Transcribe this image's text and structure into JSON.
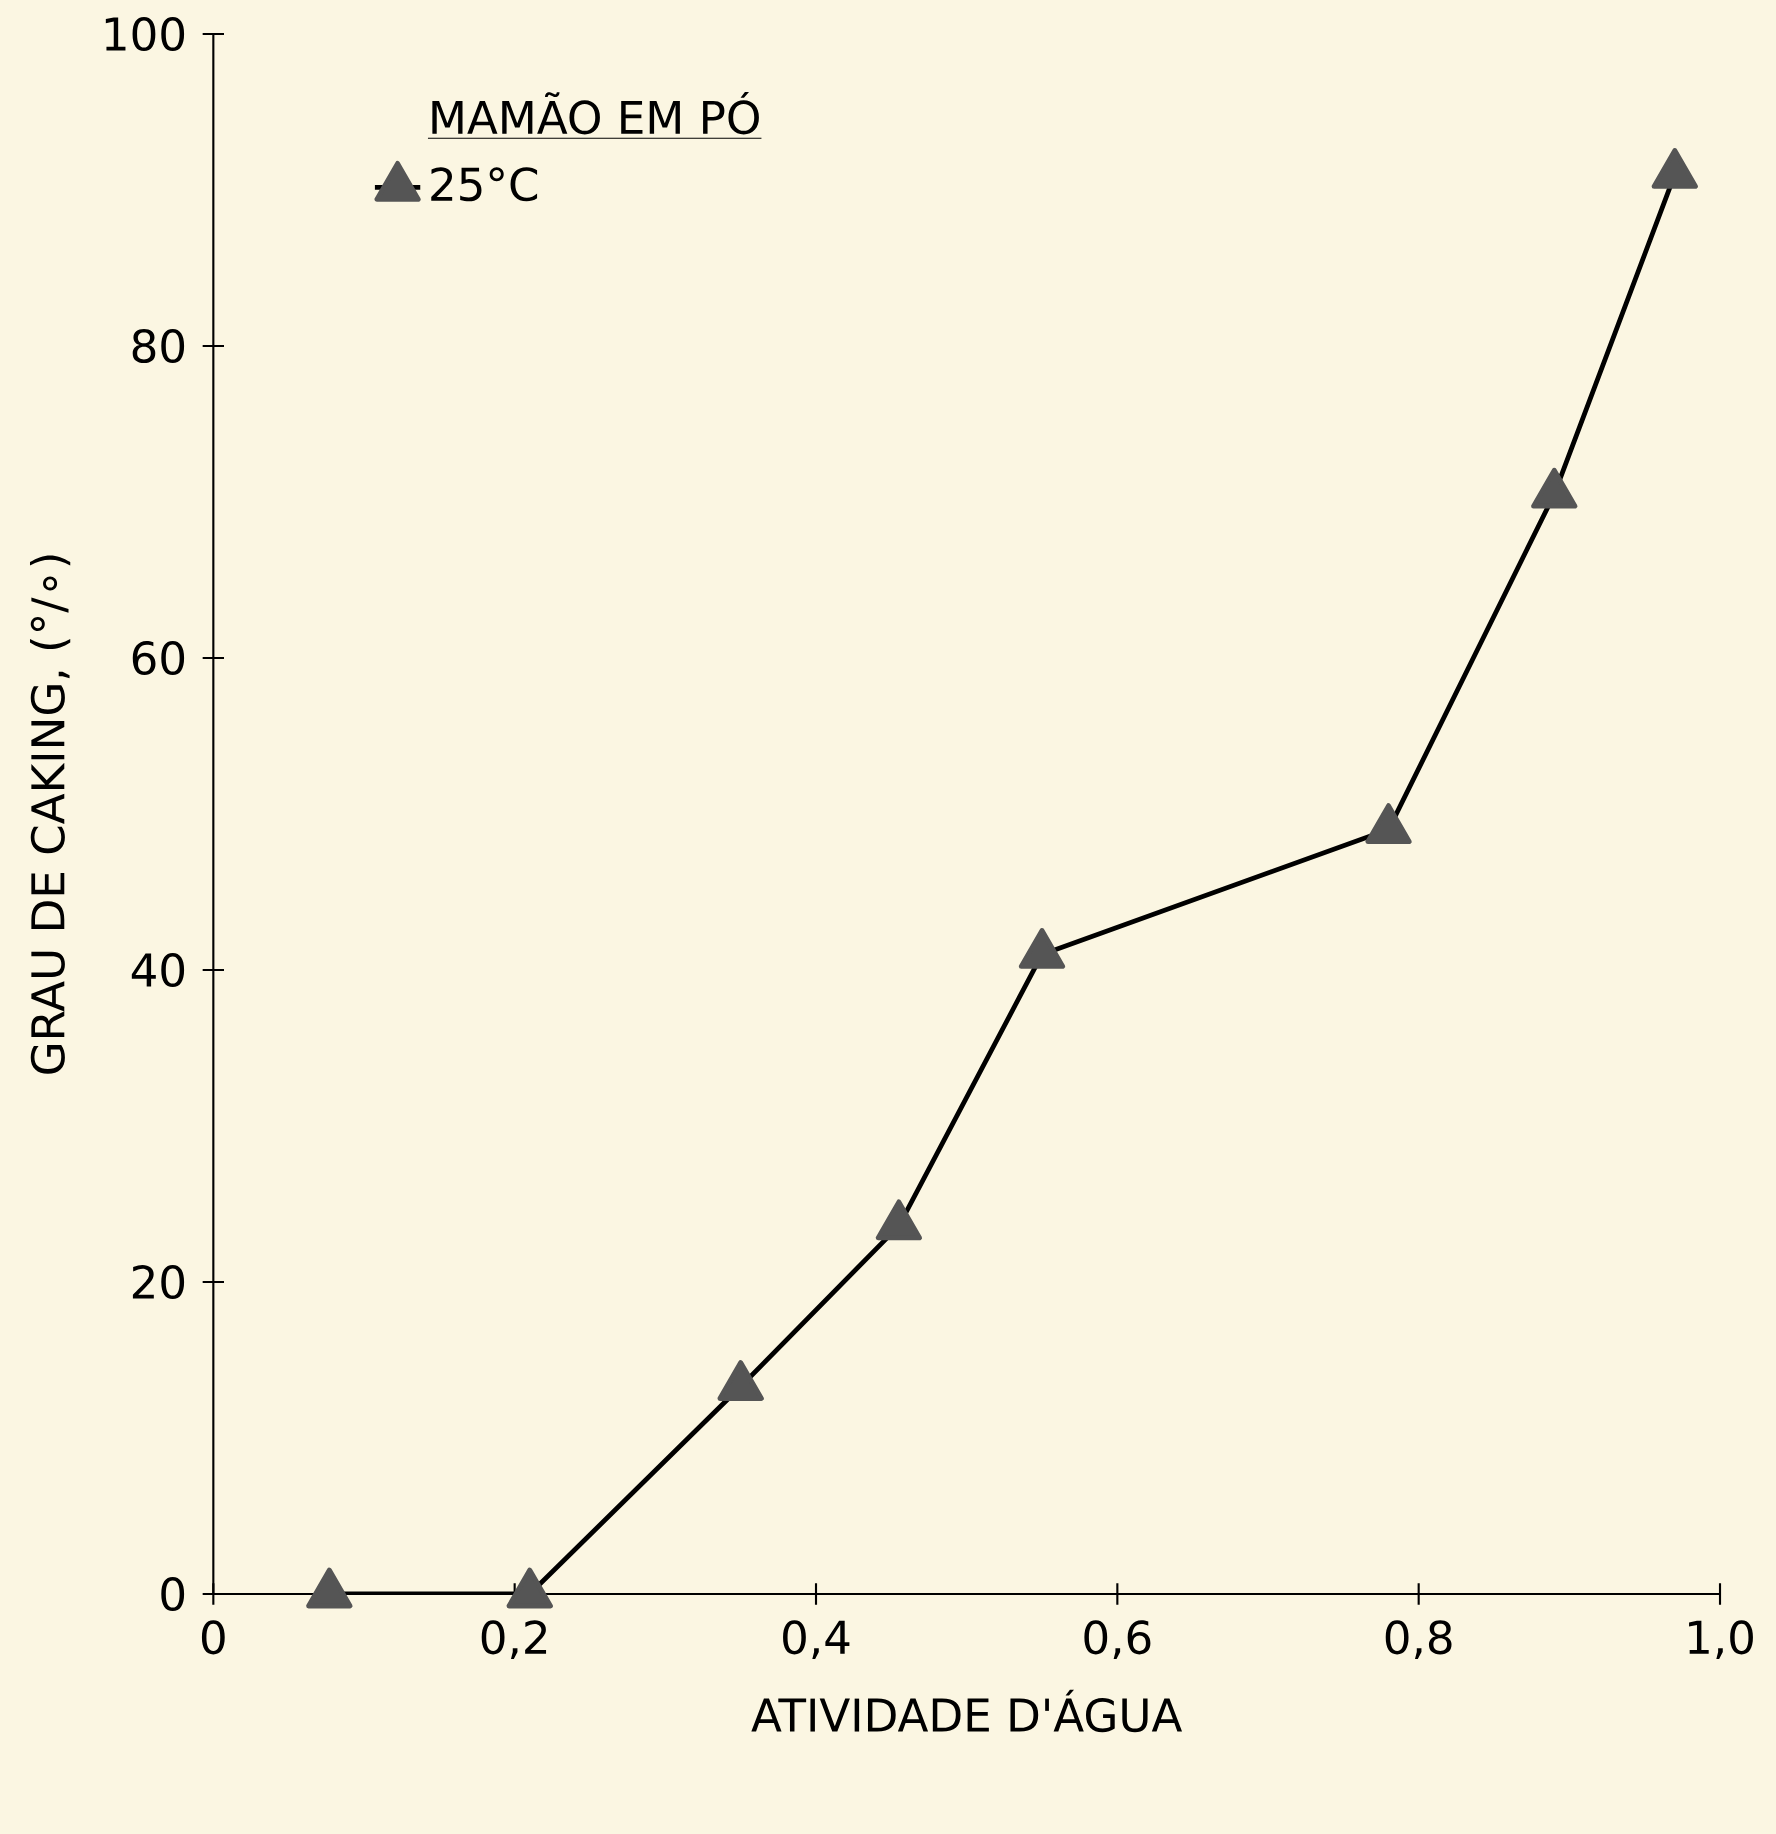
{
  "chart_data": {
    "type": "line",
    "xlabel": "ATIVIDADE D'ÁGUA",
    "ylabel": "GRAU DE CAKING, (°/∘)",
    "legend_title": "MAMÃO EM PÓ",
    "x": [
      0.077,
      0.21,
      0.35,
      0.455,
      0.55,
      0.78,
      0.89,
      0.97
    ],
    "series": [
      {
        "name": "25°C",
        "color": "#555555",
        "values": [
          0,
          0,
          13.3,
          23.6,
          41,
          49,
          70.5,
          91
        ]
      }
    ],
    "xlim": [
      0,
      1.0
    ],
    "ylim": [
      0,
      100
    ],
    "xticks": [
      0,
      {
        "value": 0.2,
        "label": "0,2"
      },
      {
        "value": 0.4,
        "label": "0,4"
      },
      {
        "value": 0.6,
        "label": "0,6"
      },
      {
        "value": 0.8,
        "label": "0,8"
      },
      {
        "value": 1.0,
        "label": "1,0"
      }
    ],
    "yticks": [
      0,
      20,
      40,
      60,
      80,
      100
    ],
    "marker": "triangle",
    "line_style": "solid",
    "legend": "top left",
    "grid": false
  }
}
